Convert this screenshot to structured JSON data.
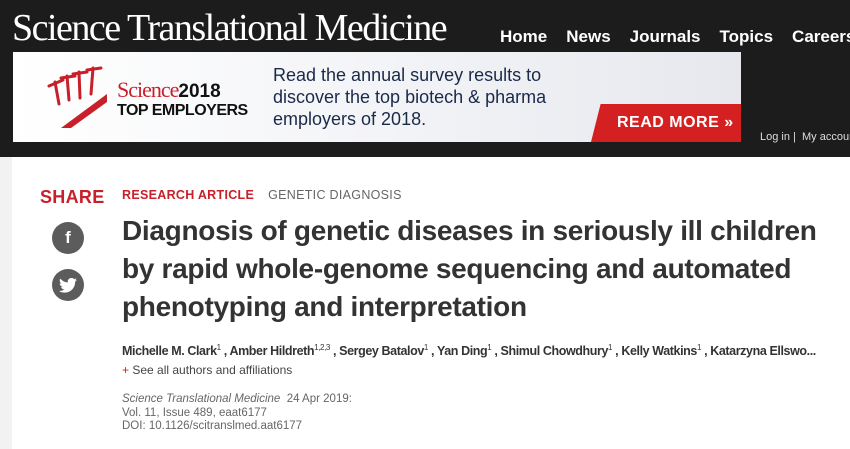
{
  "header": {
    "logo": "Science Translational Medicine",
    "nav": [
      "Home",
      "News",
      "Journals",
      "Topics",
      "Careers"
    ],
    "login": "Log in",
    "account": "My account"
  },
  "banner": {
    "science": "Science",
    "year": "2018",
    "top": "TOP EMPLOYERS",
    "text": "Read the annual survey results to discover the top biotech & pharma employers of 2018.",
    "cta": "READ MORE »"
  },
  "share": {
    "label": "SHARE",
    "icons": [
      "facebook-icon",
      "twitter-icon"
    ]
  },
  "article": {
    "type": "RESEARCH ARTICLE",
    "topic": "GENETIC DIAGNOSIS",
    "title": "Diagnosis of genetic diseases in seriously ill children by rapid whole-genome sequencing and automated phenotyping and interpretation",
    "authors": [
      {
        "name": "Michelle M. Clark",
        "aff": "1"
      },
      {
        "name": "Amber Hildreth",
        "aff": "1,2,3"
      },
      {
        "name": "Sergey Batalov",
        "aff": "1"
      },
      {
        "name": "Yan Ding",
        "aff": "1"
      },
      {
        "name": "Shimul Chowdhury",
        "aff": "1"
      },
      {
        "name": "Kelly Watkins",
        "aff": "1"
      },
      {
        "name": "Katarzyna Ellswo...",
        "aff": ""
      }
    ],
    "see_all": "See all authors and affiliations",
    "journal": "Science Translational Medicine",
    "date": "24 Apr 2019:",
    "volume": "Vol. 11, Issue 489, eaat6177",
    "doi": "DOI: 10.1126/scitranslmed.aat6177"
  }
}
